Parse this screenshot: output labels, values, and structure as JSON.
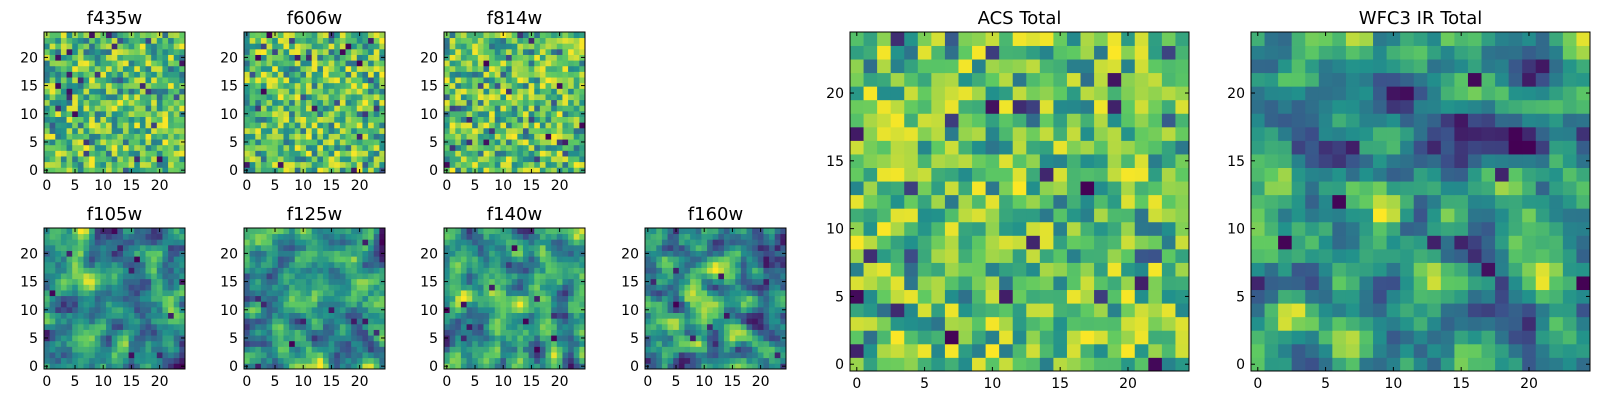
{
  "colormap": [
    "#440154",
    "#3b528b",
    "#21918c",
    "#5ec962",
    "#fde725"
  ],
  "chart_data": [
    {
      "type": "heatmap",
      "title": "f435w",
      "grid": [
        25,
        25
      ],
      "seed": 11,
      "smooth": 0,
      "xticks": [
        "0",
        "5",
        "10",
        "15",
        "20"
      ],
      "yticks": [
        "0",
        "5",
        "10",
        "15",
        "20"
      ]
    },
    {
      "type": "heatmap",
      "title": "f606w",
      "grid": [
        25,
        25
      ],
      "seed": 23,
      "smooth": 0,
      "xticks": [
        "0",
        "5",
        "10",
        "15",
        "20"
      ],
      "yticks": [
        "0",
        "5",
        "10",
        "15",
        "20"
      ]
    },
    {
      "type": "heatmap",
      "title": "f814w",
      "grid": [
        25,
        25
      ],
      "seed": 37,
      "smooth": 0,
      "xticks": [
        "0",
        "5",
        "10",
        "15",
        "20"
      ],
      "yticks": [
        "0",
        "5",
        "10",
        "15",
        "20"
      ]
    },
    {
      "type": "heatmap",
      "title": "f105w",
      "grid": [
        25,
        25
      ],
      "seed": 41,
      "smooth": 1,
      "xticks": [
        "0",
        "5",
        "10",
        "15",
        "20"
      ],
      "yticks": [
        "0",
        "5",
        "10",
        "15",
        "20"
      ]
    },
    {
      "type": "heatmap",
      "title": "f125w",
      "grid": [
        25,
        25
      ],
      "seed": 53,
      "smooth": 1,
      "xticks": [
        "0",
        "5",
        "10",
        "15",
        "20"
      ],
      "yticks": [
        "0",
        "5",
        "10",
        "15",
        "20"
      ]
    },
    {
      "type": "heatmap",
      "title": "f140w",
      "grid": [
        25,
        25
      ],
      "seed": 67,
      "smooth": 1,
      "xticks": [
        "0",
        "5",
        "10",
        "15",
        "20"
      ],
      "yticks": [
        "0",
        "5",
        "10",
        "15",
        "20"
      ]
    },
    {
      "type": "heatmap",
      "title": "f160w",
      "grid": [
        25,
        25
      ],
      "seed": 71,
      "smooth": 1,
      "xticks": [
        "0",
        "5",
        "10",
        "15",
        "20"
      ],
      "yticks": [
        "0",
        "5",
        "10",
        "15",
        "20"
      ]
    },
    {
      "type": "heatmap",
      "title": "ACS Total",
      "grid": [
        25,
        25
      ],
      "seed": 83,
      "smooth": 0,
      "xticks": [
        "0",
        "5",
        "10",
        "15",
        "20"
      ],
      "yticks": [
        "0",
        "5",
        "10",
        "15",
        "20"
      ]
    },
    {
      "type": "heatmap",
      "title": "WFC3 IR Total",
      "grid": [
        25,
        25
      ],
      "seed": 97,
      "smooth": 1,
      "xticks": [
        "0",
        "5",
        "10",
        "15",
        "20"
      ],
      "yticks": [
        "0",
        "5",
        "10",
        "15",
        "20"
      ]
    }
  ]
}
